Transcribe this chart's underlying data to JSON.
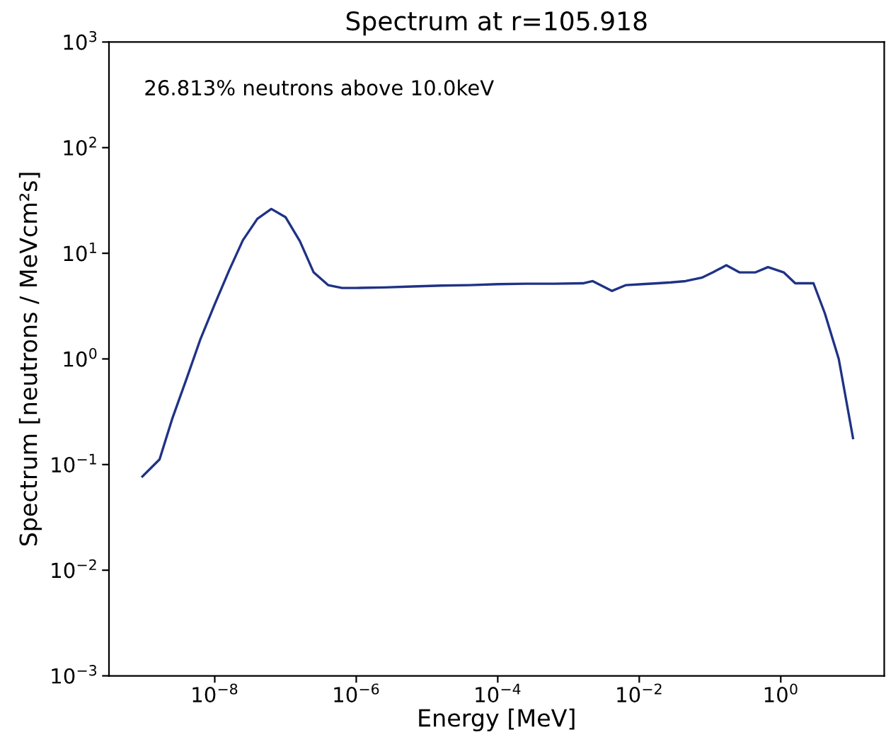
{
  "chart_data": {
    "type": "line",
    "title": "Spectrum at r=105.918",
    "xlabel": "Energy [MeV]",
    "ylabel": "Spectrum [neutrons / MeVcm²s]",
    "annotations": [
      "26.813% neutrons above 10.0keV"
    ],
    "log": "xy",
    "grid": false,
    "legend": false,
    "xlim": [
      3.2e-10,
      29
    ],
    "ylim": [
      0.001,
      1000
    ],
    "xticks": [
      {
        "value": 1e-08,
        "label": "10$^{−8}$"
      },
      {
        "value": 1e-06,
        "label": "10$^{−6}$"
      },
      {
        "value": 0.0001,
        "label": "10$^{−4}$"
      },
      {
        "value": 0.01,
        "label": "10$^{−2}$"
      },
      {
        "value": 1,
        "label": "10$^{0}$"
      }
    ],
    "yticks": [
      {
        "value": 0.001,
        "label": "10$^{−3}$"
      },
      {
        "value": 0.01,
        "label": "10$^{−2}$"
      },
      {
        "value": 0.1,
        "label": "10$^{−1}$"
      },
      {
        "value": 1,
        "label": "10$^{0}$"
      },
      {
        "value": 10,
        "label": "10$^{1}$"
      },
      {
        "value": 100,
        "label": "10$^{2}$"
      },
      {
        "value": 1000,
        "label": "10$^{3}$"
      }
    ],
    "x": [
      9.5e-10,
      1.66e-09,
      2.5e-09,
      4e-09,
      6.3e-09,
      1e-08,
      1.6e-08,
      2.5e-08,
      4e-08,
      6.3e-08,
      1e-07,
      1.6e-07,
      2.5e-07,
      4e-07,
      6.3e-07,
      1e-06,
      2.5e-06,
      6.3e-06,
      1.6e-05,
      4e-05,
      0.0001,
      0.00025,
      0.00063,
      0.0016,
      0.0022,
      0.0041,
      0.0065,
      0.011,
      0.018,
      0.028,
      0.045,
      0.078,
      0.11,
      0.17,
      0.26,
      0.44,
      0.66,
      1.1,
      1.6,
      2.9,
      4.2,
      6.6,
      10.5
    ],
    "series": [
      {
        "color": "#1f3285",
        "values": [
          0.077,
          0.112,
          0.27,
          0.65,
          1.55,
          3.3,
          6.9,
          13.3,
          21.2,
          26.3,
          22,
          13,
          6.6,
          5.0,
          4.7,
          4.7,
          4.75,
          4.85,
          4.95,
          5.0,
          5.1,
          5.15,
          5.15,
          5.2,
          5.45,
          4.4,
          5.0,
          5.1,
          5.2,
          5.3,
          5.45,
          5.9,
          6.6,
          7.7,
          6.6,
          6.6,
          7.4,
          6.6,
          5.2,
          5.2,
          2.7,
          1.0,
          0.178
        ]
      }
    ]
  }
}
